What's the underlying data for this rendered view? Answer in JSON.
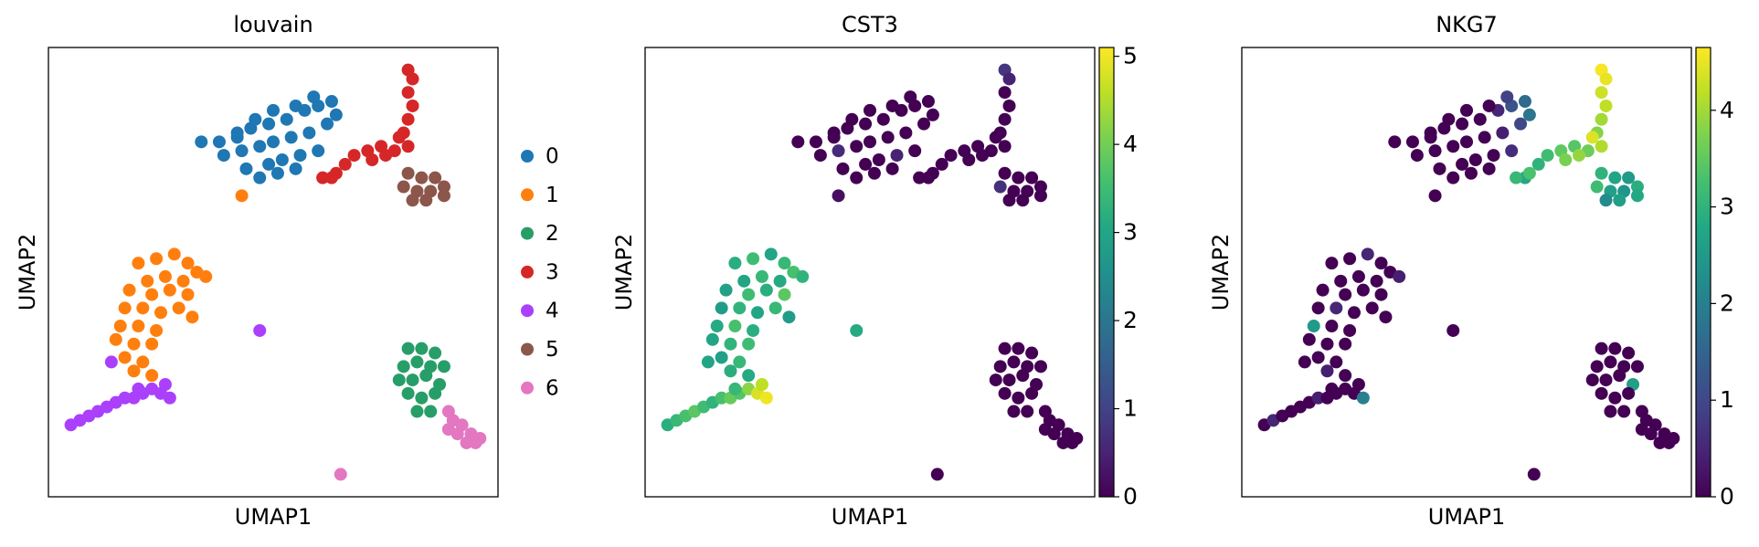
{
  "chart_data": [
    {
      "type": "scatter",
      "title": "louvain",
      "x_label": "UMAP1",
      "y_label": "UMAP2",
      "xlim": [
        0,
        100
      ],
      "ylim": [
        0,
        100
      ],
      "series": [
        {
          "name": "0",
          "color": "#1f77b4",
          "x": [
            34,
            38,
            42,
            45,
            49,
            53,
            57,
            60,
            63,
            39,
            43,
            47,
            50,
            54,
            58,
            62,
            64,
            44,
            49,
            52,
            56,
            60,
            47,
            51,
            55,
            42,
            46,
            50,
            55,
            59
          ],
          "y": [
            79,
            79,
            80,
            82,
            83,
            84,
            86,
            87,
            88,
            76,
            77,
            78,
            79,
            80,
            81,
            83,
            85,
            73,
            74,
            75,
            76,
            77,
            71,
            72,
            73,
            81,
            84,
            86,
            87,
            89
          ]
        },
        {
          "name": "1",
          "color": "#ff7f0e",
          "x": [
            20,
            24,
            28,
            31,
            33,
            35,
            30,
            26,
            22,
            18,
            23,
            27,
            31,
            17,
            21,
            25,
            29,
            16,
            20,
            24,
            15,
            19,
            23,
            17,
            21,
            19,
            23,
            32,
            43
          ],
          "y": [
            52,
            53,
            54,
            52,
            50,
            49,
            48,
            49,
            48,
            46,
            45,
            46,
            45,
            42,
            42,
            41,
            42,
            38,
            38,
            37,
            35,
            34,
            34,
            31,
            30,
            28,
            27,
            40,
            67
          ]
        },
        {
          "name": "2",
          "color": "#279e68",
          "x": [
            80,
            83,
            86,
            79,
            82,
            85,
            88,
            78,
            81,
            84,
            87,
            80,
            83,
            86,
            82,
            85
          ],
          "y": [
            33,
            33,
            32,
            29,
            30,
            29,
            29,
            26,
            26,
            27,
            25,
            23,
            22,
            23,
            19,
            19
          ]
        },
        {
          "name": "3",
          "color": "#d62728",
          "x": [
            80,
            81,
            80,
            81,
            80,
            79,
            80,
            77,
            74,
            71,
            68,
            72,
            75,
            66,
            63,
            61,
            64,
            78
          ],
          "y": [
            95,
            93,
            90,
            87,
            84,
            81,
            78,
            77,
            78,
            77,
            76,
            75,
            76,
            74,
            71,
            71,
            72,
            80
          ]
        },
        {
          "name": "4",
          "color": "#aa40fc",
          "x": [
            5,
            7,
            9,
            11,
            13,
            15,
            17,
            19,
            21,
            23,
            25,
            27,
            26,
            20,
            14,
            47
          ],
          "y": [
            16,
            17,
            18,
            19,
            20,
            21,
            22,
            22,
            23,
            24,
            23,
            22,
            25,
            24,
            30,
            37
          ]
        },
        {
          "name": "5",
          "color": "#8c564b",
          "x": [
            80,
            83,
            86,
            88,
            79,
            82,
            85,
            88,
            81,
            84
          ],
          "y": [
            72,
            71,
            71,
            69,
            69,
            68,
            68,
            67,
            66,
            66
          ]
        },
        {
          "name": "6",
          "color": "#e377c2",
          "x": [
            89,
            90,
            92,
            94,
            91,
            93,
            95,
            89,
            96,
            65
          ],
          "y": [
            19,
            17,
            16,
            14,
            14,
            12,
            12,
            15,
            13,
            5
          ]
        }
      ]
    },
    {
      "type": "scatter",
      "title": "CST3",
      "x_label": "UMAP1",
      "y_label": "UMAP2",
      "xlim": [
        0,
        100
      ],
      "ylim": [
        0,
        100
      ],
      "clim": [
        0,
        5.1
      ],
      "cticks": [
        0,
        1,
        2,
        3,
        4,
        5
      ],
      "x": [
        34,
        38,
        42,
        45,
        49,
        53,
        57,
        60,
        63,
        39,
        43,
        47,
        50,
        54,
        58,
        62,
        64,
        44,
        49,
        52,
        56,
        60,
        47,
        51,
        55,
        42,
        46,
        50,
        55,
        59,
        20,
        24,
        28,
        31,
        33,
        35,
        30,
        26,
        22,
        18,
        23,
        27,
        31,
        17,
        21,
        25,
        29,
        16,
        20,
        24,
        15,
        19,
        23,
        17,
        21,
        19,
        23,
        32,
        43,
        80,
        83,
        86,
        79,
        82,
        85,
        88,
        78,
        81,
        84,
        87,
        80,
        83,
        86,
        82,
        85,
        80,
        81,
        80,
        81,
        80,
        79,
        80,
        77,
        74,
        71,
        68,
        72,
        75,
        66,
        63,
        61,
        64,
        78,
        5,
        7,
        9,
        11,
        13,
        15,
        17,
        19,
        21,
        23,
        25,
        27,
        26,
        20,
        14,
        47,
        80,
        83,
        86,
        88,
        79,
        82,
        85,
        88,
        81,
        84,
        89,
        90,
        92,
        94,
        91,
        93,
        95,
        89,
        96,
        65
      ],
      "y": [
        79,
        79,
        80,
        82,
        83,
        84,
        86,
        87,
        88,
        76,
        77,
        78,
        79,
        80,
        81,
        83,
        85,
        73,
        74,
        75,
        76,
        77,
        71,
        72,
        73,
        81,
        84,
        86,
        87,
        89,
        52,
        53,
        54,
        52,
        50,
        49,
        48,
        49,
        48,
        46,
        45,
        46,
        45,
        42,
        42,
        41,
        42,
        38,
        38,
        37,
        35,
        34,
        34,
        31,
        30,
        28,
        27,
        40,
        67,
        33,
        33,
        32,
        29,
        30,
        29,
        29,
        26,
        26,
        27,
        25,
        23,
        22,
        23,
        19,
        19,
        95,
        93,
        90,
        87,
        84,
        81,
        78,
        77,
        78,
        77,
        76,
        75,
        76,
        74,
        71,
        71,
        72,
        80,
        16,
        17,
        18,
        19,
        20,
        21,
        22,
        22,
        23,
        24,
        23,
        22,
        25,
        24,
        30,
        37,
        72,
        71,
        71,
        69,
        69,
        68,
        68,
        67,
        66,
        66,
        19,
        17,
        16,
        14,
        14,
        12,
        12,
        15,
        13,
        5
      ],
      "values": [
        0,
        0,
        0,
        0,
        0,
        0,
        0,
        0,
        0,
        0,
        0.6,
        0,
        0,
        0,
        0,
        0,
        0,
        0,
        0,
        0,
        0.5,
        0,
        0,
        0,
        0,
        0,
        0,
        0,
        0,
        0,
        3.2,
        3.5,
        3.0,
        3.4,
        3.6,
        3.3,
        3.1,
        3.4,
        3.0,
        2.9,
        3.5,
        3.2,
        3.8,
        2.8,
        3.3,
        3.0,
        3.4,
        3.1,
        3.6,
        3.2,
        3.0,
        3.3,
        3.5,
        2.9,
        3.4,
        3.2,
        3.1,
        2.8,
        0.2,
        0,
        0,
        0,
        0,
        0,
        0,
        0,
        0,
        0,
        0,
        0,
        0,
        0,
        0,
        0,
        0,
        0.8,
        0.5,
        0,
        0,
        0,
        0,
        0,
        0,
        0,
        0,
        0,
        0,
        0,
        0,
        0,
        0,
        0,
        0,
        3.2,
        3.4,
        3.6,
        3.8,
        3.5,
        3.3,
        3.6,
        3.9,
        3.7,
        4.2,
        4.8,
        5.0,
        4.6,
        3.4,
        3.0,
        3.1,
        0,
        0,
        0,
        0,
        0.7,
        0,
        0,
        0,
        0,
        0,
        0,
        0,
        0,
        0,
        0,
        0,
        0,
        0,
        0,
        0
      ]
    },
    {
      "type": "scatter",
      "title": "NKG7",
      "x_label": "UMAP1",
      "y_label": "UMAP2",
      "xlim": [
        0,
        100
      ],
      "ylim": [
        0,
        100
      ],
      "clim": [
        0,
        4.65
      ],
      "cticks": [
        0,
        1,
        2,
        3,
        4
      ],
      "x": [
        34,
        38,
        42,
        45,
        49,
        53,
        57,
        60,
        63,
        39,
        43,
        47,
        50,
        54,
        58,
        62,
        64,
        44,
        49,
        52,
        56,
        60,
        47,
        51,
        55,
        42,
        46,
        50,
        55,
        59,
        20,
        24,
        28,
        31,
        33,
        35,
        30,
        26,
        22,
        18,
        23,
        27,
        31,
        17,
        21,
        25,
        29,
        16,
        20,
        24,
        15,
        19,
        23,
        17,
        21,
        19,
        23,
        32,
        43,
        80,
        83,
        86,
        79,
        82,
        85,
        88,
        78,
        81,
        84,
        87,
        80,
        83,
        86,
        82,
        85,
        80,
        81,
        80,
        81,
        80,
        79,
        80,
        77,
        74,
        71,
        68,
        72,
        75,
        66,
        63,
        61,
        64,
        78,
        5,
        7,
        9,
        11,
        13,
        15,
        17,
        19,
        21,
        23,
        25,
        27,
        26,
        20,
        14,
        47,
        80,
        83,
        86,
        88,
        79,
        82,
        85,
        88,
        81,
        84,
        89,
        90,
        92,
        94,
        91,
        93,
        95,
        89,
        96,
        65
      ],
      "y": [
        79,
        79,
        80,
        82,
        83,
        84,
        86,
        87,
        88,
        76,
        77,
        78,
        79,
        80,
        81,
        83,
        85,
        73,
        74,
        75,
        76,
        77,
        71,
        72,
        73,
        81,
        84,
        86,
        87,
        89,
        52,
        53,
        54,
        52,
        50,
        49,
        48,
        49,
        48,
        46,
        45,
        46,
        45,
        42,
        42,
        41,
        42,
        38,
        38,
        37,
        35,
        34,
        34,
        31,
        30,
        28,
        27,
        40,
        67,
        33,
        33,
        32,
        29,
        30,
        29,
        29,
        26,
        26,
        27,
        25,
        23,
        22,
        23,
        19,
        19,
        95,
        93,
        90,
        87,
        84,
        81,
        78,
        77,
        78,
        77,
        76,
        75,
        76,
        74,
        71,
        71,
        72,
        80,
        16,
        17,
        18,
        19,
        20,
        21,
        22,
        22,
        23,
        24,
        23,
        22,
        25,
        24,
        30,
        37,
        72,
        71,
        71,
        69,
        69,
        68,
        68,
        67,
        66,
        66,
        19,
        17,
        16,
        14,
        14,
        12,
        12,
        15,
        13,
        5
      ],
      "values": [
        0,
        0,
        0,
        0,
        0,
        0,
        0.5,
        1.2,
        1.6,
        0,
        0,
        0,
        0,
        0,
        0.4,
        1.0,
        1.8,
        0,
        0,
        0,
        0,
        0.6,
        0,
        0,
        0,
        0,
        0,
        0,
        0,
        0.9,
        0,
        0,
        0.5,
        0,
        0,
        0.4,
        0,
        0,
        0,
        0,
        0,
        0,
        0,
        0,
        0.5,
        0,
        0,
        2.5,
        0,
        0,
        0,
        0,
        0,
        0,
        0,
        0.4,
        0,
        0,
        0,
        0,
        0,
        0,
        0,
        0,
        0,
        0,
        0,
        0,
        0,
        2.6,
        0,
        0,
        0,
        0,
        0,
        4.6,
        4.5,
        4.3,
        4.2,
        4.0,
        3.8,
        4.1,
        3.6,
        3.4,
        3.5,
        3.2,
        3.7,
        3.9,
        3.0,
        2.8,
        3.1,
        3.3,
        4.4,
        0,
        0.5,
        0,
        0,
        0,
        0,
        0.4,
        0,
        0,
        0,
        0,
        2.0,
        0,
        0,
        0,
        0,
        3.0,
        2.7,
        2.5,
        2.9,
        3.2,
        2.6,
        2.4,
        2.8,
        2.2,
        2.6,
        0,
        0,
        0,
        0,
        0,
        0,
        0,
        0,
        0,
        0
      ]
    }
  ]
}
